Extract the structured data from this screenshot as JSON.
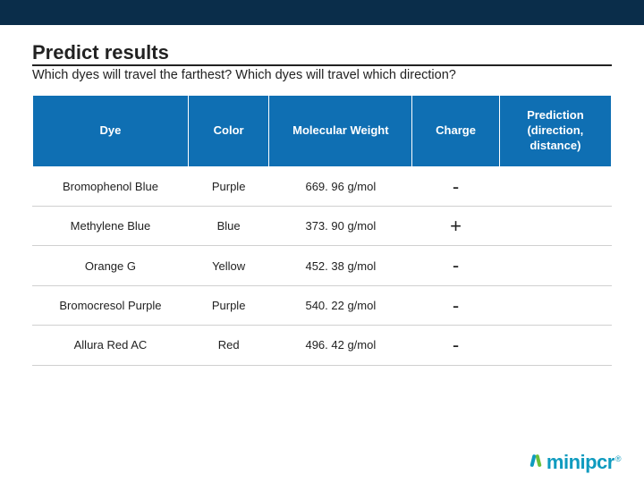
{
  "title": "Predict results",
  "subtitle": "Which dyes will travel the farthest? Which dyes will travel which direction?",
  "colors": {
    "topbar": "#0a2d4a",
    "header_bg": "#0f6fb3",
    "header_text": "#ffffff",
    "body_text": "#222222",
    "row_border": "#d0d0d0",
    "logo_primary": "#0f9bbf",
    "logo_accent": "#6bbf3a"
  },
  "table": {
    "headers": {
      "dye": "Dye",
      "color": "Color",
      "mw": "Molecular Weight",
      "charge": "Charge",
      "prediction": "Prediction (direction, distance)"
    },
    "rows": [
      {
        "dye": "Bromophenol Blue",
        "color": "Purple",
        "mw": "669. 96 g/mol",
        "charge": "-",
        "prediction": ""
      },
      {
        "dye": "Methylene Blue",
        "color": "Blue",
        "mw": "373. 90 g/mol",
        "charge": "+",
        "prediction": ""
      },
      {
        "dye": "Orange G",
        "color": "Yellow",
        "mw": "452. 38 g/mol",
        "charge": "-",
        "prediction": ""
      },
      {
        "dye": "Bromocresol Purple",
        "color": "Purple",
        "mw": "540. 22 g/mol",
        "charge": "-",
        "prediction": ""
      },
      {
        "dye": "Allura Red AC",
        "color": "Red",
        "mw": "496. 42 g/mol",
        "charge": "-",
        "prediction": ""
      }
    ]
  },
  "logo": {
    "text": "minipcr",
    "reg": "®"
  }
}
